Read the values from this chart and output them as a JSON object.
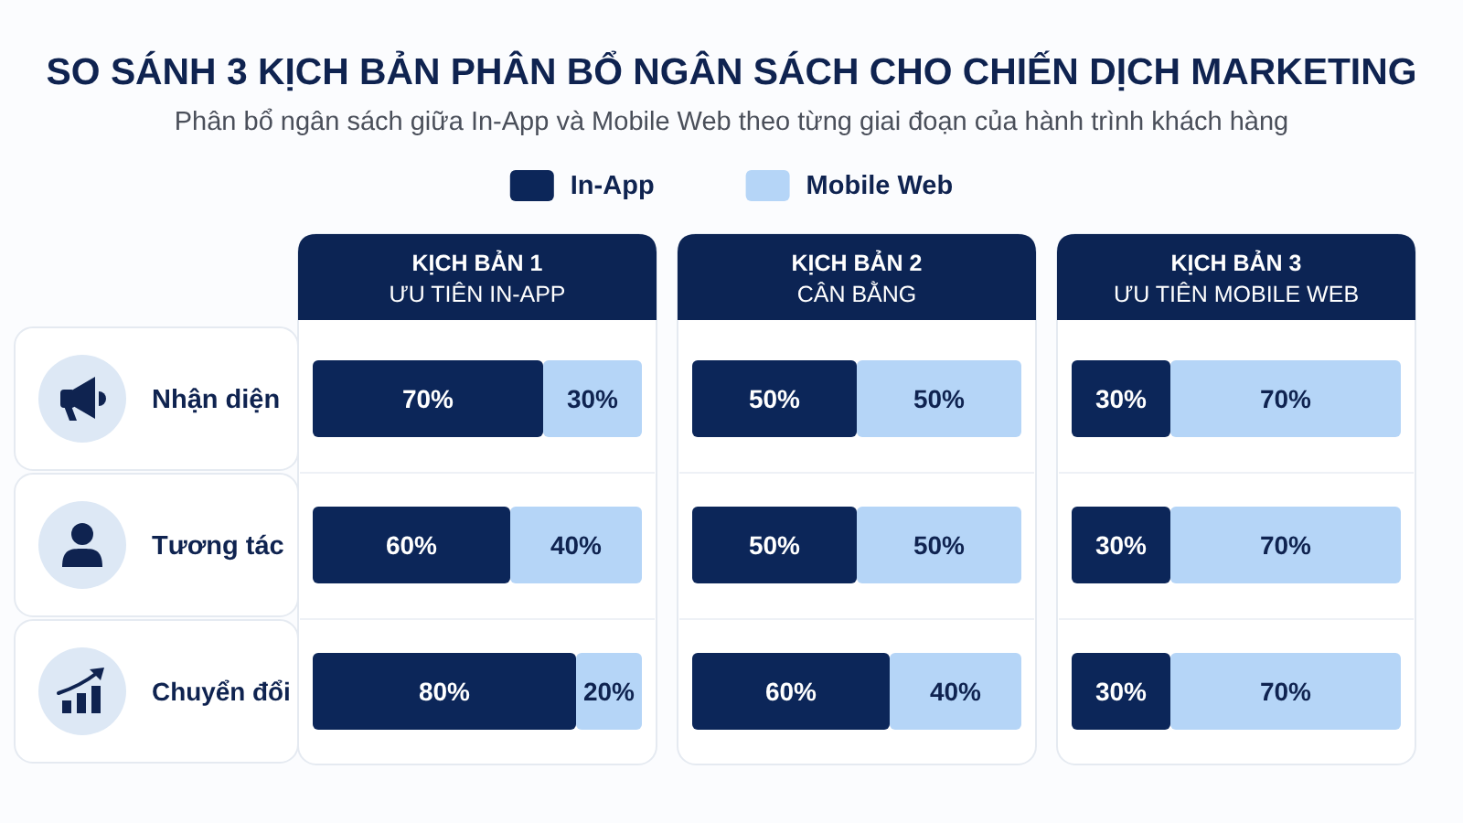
{
  "chart_data": [
    {
      "type": "bar",
      "orientation": "horizontal",
      "stacked": true,
      "title": "KỊCH BẢN 1",
      "subtitle": "ƯU TIÊN IN-APP",
      "annotations": [
        "SO SÁNH 3 KỊCH BẢN PHÂN BỔ NGÂN SÁCH CHO CHIẾN DỊCH MARKETING",
        "Phân bổ ngân sách giữa In-App và Mobile Web theo từng giai đoạn của hành trình khách hàng"
      ],
      "categories": [
        "Nhận diện",
        "Tương tác",
        "Chuyển đổi"
      ],
      "xlim": [
        0,
        100
      ],
      "tick_labels": "y",
      "legend": "top",
      "series": [
        {
          "name": "In-App",
          "color": "#0c2659",
          "values": [
            70,
            60,
            80
          ],
          "value_labels": [
            "70%",
            "60%",
            "80%"
          ]
        },
        {
          "name": "Mobile Web",
          "color": "#b5d5f7",
          "values": [
            30,
            40,
            20
          ],
          "value_labels": [
            "30%",
            "40%",
            "20%"
          ]
        }
      ]
    },
    {
      "type": "bar",
      "orientation": "horizontal",
      "stacked": true,
      "title": "KỊCH BẢN 2",
      "subtitle": "CÂN BẰNG",
      "categories": [
        "Nhận diện",
        "Tương tác",
        "Chuyển đổi"
      ],
      "xlim": [
        0,
        100
      ],
      "tick_labels": false,
      "series": [
        {
          "name": "In-App",
          "color": "#0c2659",
          "values": [
            50,
            50,
            60
          ],
          "value_labels": [
            "50%",
            "50%",
            "60%"
          ]
        },
        {
          "name": "Mobile Web",
          "color": "#b5d5f7",
          "values": [
            50,
            50,
            40
          ],
          "value_labels": [
            "50%",
            "50%",
            "40%"
          ]
        }
      ]
    },
    {
      "type": "bar",
      "orientation": "horizontal",
      "stacked": true,
      "title": "KỊCH BẢN 3",
      "subtitle": "ƯU TIÊN MOBILE WEB",
      "categories": [
        "Nhận diện",
        "Tương tác",
        "Chuyển đổi"
      ],
      "xlim": [
        0,
        100
      ],
      "tick_labels": false,
      "series": [
        {
          "name": "In-App",
          "color": "#0c2659",
          "values": [
            30,
            30,
            30
          ],
          "value_labels": [
            "30%",
            "30%",
            "30%"
          ]
        },
        {
          "name": "Mobile Web",
          "color": "#b5d5f7",
          "values": [
            70,
            70,
            70
          ],
          "value_labels": [
            "70%",
            "70%",
            "70%"
          ]
        }
      ]
    }
  ]
}
